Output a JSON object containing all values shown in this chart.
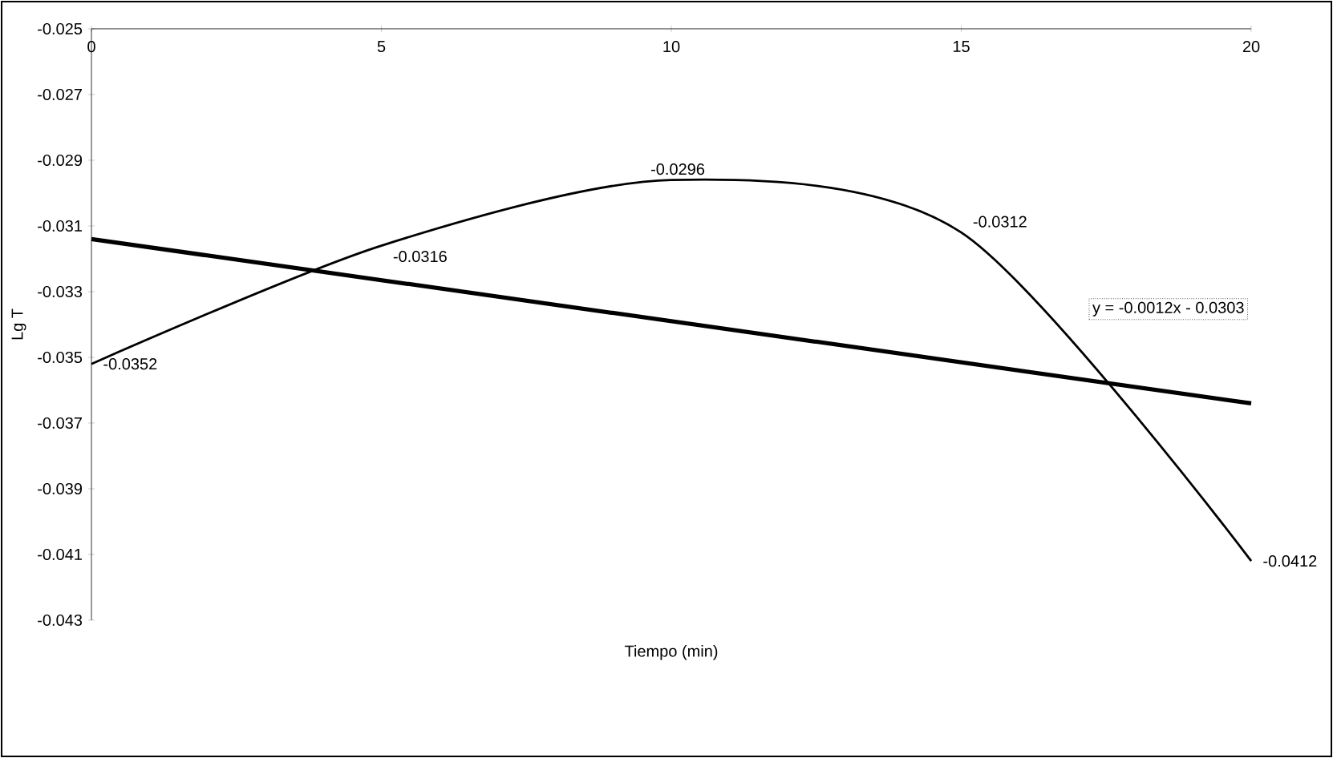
{
  "chart_data": {
    "type": "line",
    "xlabel": "Tiempo (min)",
    "ylabel": "Lg T",
    "x": [
      0,
      5,
      10,
      15,
      20
    ],
    "series": [
      {
        "color": "#000000",
        "values": [
          -0.0352,
          -0.0316,
          -0.0296,
          -0.0312,
          -0.0412
        ],
        "value_labels": [
          "-0.0352",
          "-0.0316",
          "-0.0296",
          "-0.0312",
          "-0.0412"
        ]
      },
      {
        "type": "line",
        "color": "#000000",
        "x": [
          0,
          20
        ],
        "values": [
          -0.0314,
          -0.0364
        ]
      }
    ],
    "xlim": [
      0,
      20
    ],
    "xticks": [
      0,
      5,
      10,
      15,
      20
    ],
    "ylim": [
      -0.043,
      -0.025
    ],
    "yticks": [
      -0.025,
      -0.027,
      -0.029,
      -0.031,
      -0.033,
      -0.035,
      -0.037,
      -0.039,
      -0.041,
      -0.043
    ],
    "annotations": [
      "y = -0.0012x - 0.0303"
    ],
    "grid": false,
    "marker": "none",
    "line_style": "solid"
  }
}
